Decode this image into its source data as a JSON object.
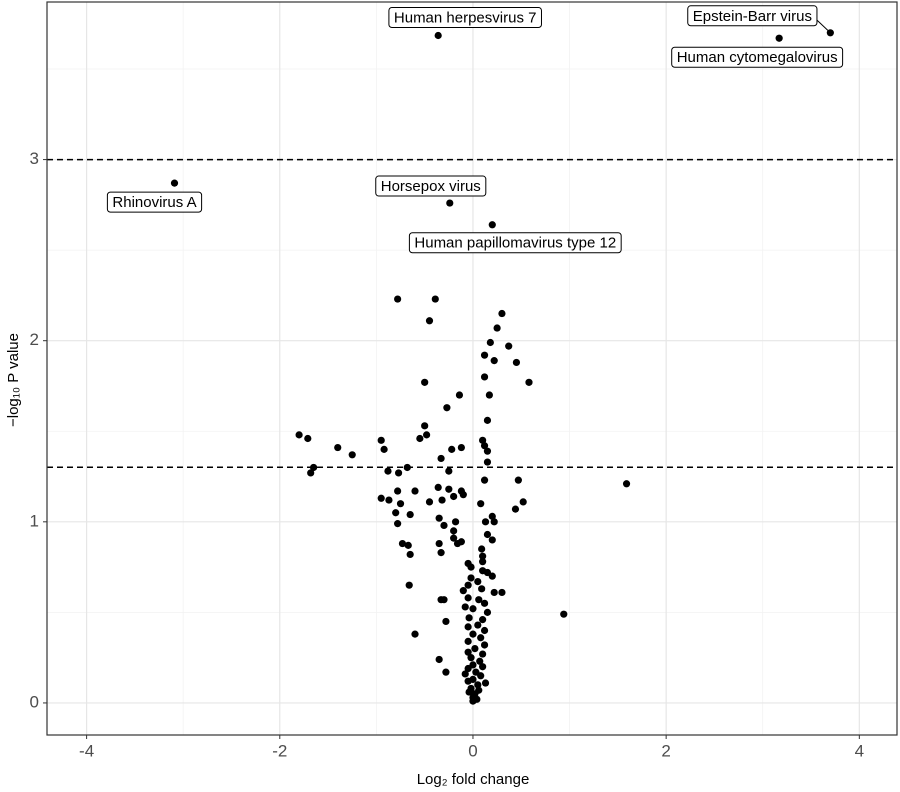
{
  "chart_data": {
    "type": "scatter",
    "xlabel": "Log₂ fold change",
    "ylabel": "−log₁₀ P value",
    "xlim": [
      -4.41,
      4.39
    ],
    "ylim": [
      -0.177,
      3.87
    ],
    "xticks": [
      -4,
      -2,
      0,
      2,
      4
    ],
    "yticks": [
      0,
      1,
      2,
      3
    ],
    "x_minor_ticks": [
      -3,
      -1,
      1,
      3
    ],
    "y_minor_ticks": [
      0.5,
      1.5,
      2.5,
      3.5
    ],
    "grid": true,
    "hlines": [
      3,
      1.301
    ],
    "series": [
      {
        "color": "#000000",
        "x": [
          -0.36,
          3.7,
          3.17,
          -3.09,
          -0.24,
          0.2
        ],
        "y": [
          3.685,
          3.7,
          3.67,
          2.87,
          2.76,
          2.64
        ],
        "labels": [
          "Human herpesvirus 7",
          "Epstein-Barr virus",
          "Human cytomegalovirus",
          "Rhinovirus A",
          "Horsepox virus",
          "Human papillomavirus type 12"
        ]
      },
      {
        "color": "#000000",
        "x": [
          -0.78,
          -0.39,
          -0.45,
          0.3,
          0.25,
          0.18,
          0.12,
          0.37,
          0.22,
          0.45,
          0.58,
          -0.5,
          0.12,
          -0.14,
          0.17,
          -0.27,
          0.15,
          -0.5,
          -0.48,
          -0.55,
          -1.8,
          -1.71,
          -1.4,
          -1.25,
          -0.95,
          -0.92,
          -0.22,
          -0.12,
          0.1,
          0.12,
          0.15,
          -0.33,
          0.15,
          -1.65,
          -1.68,
          -0.88,
          -0.77,
          -0.68,
          -0.25,
          0.12,
          0.47,
          1.59,
          -0.36,
          -0.25,
          -0.12,
          -0.78,
          -0.6,
          -0.2,
          -0.1,
          -0.95,
          -0.87,
          -0.75,
          -0.45,
          -0.32,
          0.08,
          0.52,
          0.44,
          -0.8,
          -0.65,
          -0.35,
          0.2,
          0.22,
          -0.18,
          0.13,
          -0.78,
          -0.3,
          -0.2,
          0.15,
          -0.2,
          -0.12,
          -0.16,
          -0.35,
          -0.73,
          -0.67,
          0.2,
          -0.65,
          -0.33,
          0.09,
          0.1,
          0.1,
          -0.05,
          -0.02,
          0.1,
          0.15,
          0.2,
          -0.02,
          0.05,
          -0.66,
          -0.05,
          -0.1,
          0.09,
          0.22,
          0.3,
          -0.3,
          -0.33,
          -0.05,
          0.06,
          0.12,
          -0.08,
          0.0,
          0.15,
          0.94,
          -0.04,
          0.1,
          -0.28,
          0.05,
          -0.05,
          0.12,
          -0.6,
          0.0,
          0.08,
          -0.05,
          0.12,
          0.02,
          -0.05,
          0.1,
          -0.02,
          -0.35,
          0.07,
          0.0,
          0.1,
          -0.05,
          0.03,
          -0.28,
          -0.08,
          0.08,
          0.0,
          -0.05,
          0.13,
          0.05,
          -0.02,
          0.06,
          -0.04,
          0.02,
          0.0,
          0.04,
          0.0
        ],
        "y": [
          2.23,
          2.23,
          2.11,
          2.15,
          2.07,
          1.99,
          1.92,
          1.97,
          1.89,
          1.88,
          1.77,
          1.77,
          1.8,
          1.7,
          1.7,
          1.63,
          1.56,
          1.53,
          1.48,
          1.46,
          1.48,
          1.46,
          1.41,
          1.37,
          1.45,
          1.4,
          1.4,
          1.41,
          1.45,
          1.42,
          1.39,
          1.35,
          1.33,
          1.3,
          1.27,
          1.28,
          1.27,
          1.3,
          1.28,
          1.23,
          1.23,
          1.21,
          1.19,
          1.18,
          1.17,
          1.17,
          1.17,
          1.14,
          1.15,
          1.13,
          1.12,
          1.1,
          1.11,
          1.12,
          1.1,
          1.11,
          1.07,
          1.05,
          1.04,
          1.02,
          1.03,
          1.0,
          1.0,
          1.0,
          0.99,
          0.98,
          0.95,
          0.93,
          0.91,
          0.89,
          0.88,
          0.88,
          0.88,
          0.87,
          0.9,
          0.82,
          0.83,
          0.85,
          0.81,
          0.78,
          0.77,
          0.75,
          0.73,
          0.72,
          0.7,
          0.69,
          0.67,
          0.65,
          0.65,
          0.62,
          0.63,
          0.61,
          0.61,
          0.57,
          0.57,
          0.58,
          0.57,
          0.55,
          0.53,
          0.52,
          0.5,
          0.49,
          0.47,
          0.46,
          0.45,
          0.43,
          0.42,
          0.4,
          0.38,
          0.38,
          0.36,
          0.34,
          0.32,
          0.3,
          0.28,
          0.27,
          0.25,
          0.24,
          0.23,
          0.21,
          0.2,
          0.19,
          0.17,
          0.17,
          0.16,
          0.15,
          0.13,
          0.12,
          0.11,
          0.1,
          0.08,
          0.07,
          0.06,
          0.05,
          0.03,
          0.02,
          0.01
        ]
      }
    ]
  }
}
